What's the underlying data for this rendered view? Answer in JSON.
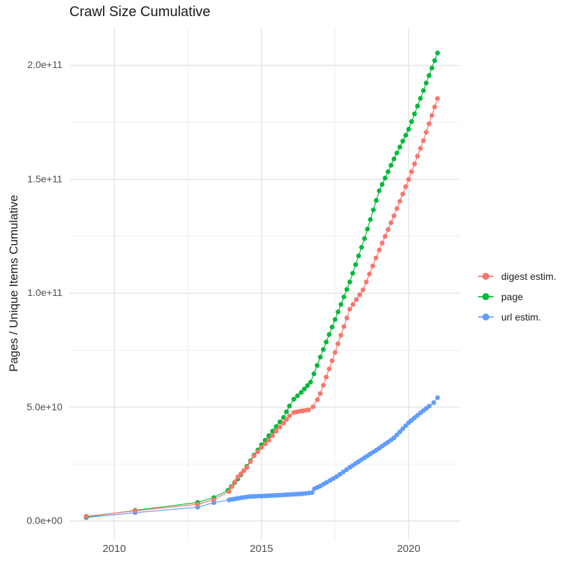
{
  "title": "Crawl Size Cumulative",
  "y_axis": {
    "title": "Pages / Unique Items Cumulative",
    "ticks": [
      {
        "label": "2.0e+11",
        "value_e9": 200
      },
      {
        "label": "1.5e+11",
        "value_e9": 150
      },
      {
        "label": "1.0e+11",
        "value_e9": 100
      },
      {
        "label": "5.0e+10",
        "value_e9": 50
      },
      {
        "label": "0.0e+00",
        "value_e9": 0
      }
    ],
    "minor_values_e9": [
      25,
      75,
      125,
      175
    ]
  },
  "x_axis": {
    "ticks": [
      {
        "label": "2010",
        "value": 2010
      },
      {
        "label": "2015",
        "value": 2015
      },
      {
        "label": "2020",
        "value": 2020
      }
    ],
    "minor_values": [
      2012.5,
      2017.5
    ]
  },
  "legend": {
    "items": [
      {
        "label": "digest estim.",
        "color": "#F8766D"
      },
      {
        "label": "page",
        "color": "#00BA38"
      },
      {
        "label": "url estim.",
        "color": "#619CFF"
      }
    ]
  },
  "colors": {
    "grid_major": "#E3E3E3",
    "grid_minor": "#EDEDED",
    "tick_text": "#4d4d4d",
    "title_text": "#1b1b1b"
  },
  "chart_data": {
    "type": "scatter",
    "title": "Crawl Size Cumulative",
    "xlabel": "",
    "ylabel": "Pages / Unique Items Cumulative",
    "unit": "items (value_billions = 1e9 items)",
    "xlim": [
      2008.5,
      2021.8
    ],
    "ylim_billions": [
      -8,
      218
    ],
    "grid": true,
    "legend_position": "right",
    "dot_interval_years": 0.105,
    "dense_from_year": 2013.8,
    "series": [
      {
        "name": "digest estim.",
        "color": "#F8766D",
        "z": 3,
        "points_billions": [
          [
            2009.05,
            2.1
          ],
          [
            2010.71,
            4.5
          ],
          [
            2012.83,
            7.4
          ],
          [
            2013.38,
            9.4
          ],
          [
            2013.9,
            13
          ],
          [
            2014.2,
            19.4
          ],
          [
            2014.5,
            23.5
          ],
          [
            2014.75,
            28.6
          ],
          [
            2015.0,
            32.3
          ],
          [
            2015.25,
            35.5
          ],
          [
            2015.5,
            39.5
          ],
          [
            2015.75,
            43
          ],
          [
            2015.95,
            46.2
          ],
          [
            2016.1,
            47.7
          ],
          [
            2016.3,
            48.2
          ],
          [
            2016.6,
            48.8
          ],
          [
            2016.75,
            50.2
          ],
          [
            2016.9,
            53.3
          ],
          [
            2017.0,
            56
          ],
          [
            2017.5,
            74
          ],
          [
            2018.0,
            93
          ],
          [
            2018.45,
            101.5
          ],
          [
            2019.0,
            119
          ],
          [
            2019.5,
            134
          ],
          [
            2020.0,
            150
          ],
          [
            2020.5,
            167
          ],
          [
            2020.98,
            185.5
          ]
        ]
      },
      {
        "name": "page",
        "color": "#00BA38",
        "z": 2,
        "points_billions": [
          [
            2009.05,
            1.8
          ],
          [
            2010.71,
            4.7
          ],
          [
            2012.83,
            8.2
          ],
          [
            2013.38,
            10.3
          ],
          [
            2013.86,
            13.5
          ],
          [
            2014.2,
            18.5
          ],
          [
            2014.5,
            24
          ],
          [
            2014.75,
            29
          ],
          [
            2015.0,
            33.5
          ],
          [
            2015.25,
            37.5
          ],
          [
            2015.5,
            41.5
          ],
          [
            2015.75,
            45.5
          ],
          [
            2015.95,
            50.5
          ],
          [
            2016.1,
            53.5
          ],
          [
            2016.35,
            56.5
          ],
          [
            2016.67,
            61
          ],
          [
            2017.0,
            72
          ],
          [
            2017.5,
            88.5
          ],
          [
            2018.0,
            105
          ],
          [
            2018.5,
            124
          ],
          [
            2019.0,
            145
          ],
          [
            2019.5,
            159
          ],
          [
            2020.0,
            172
          ],
          [
            2020.5,
            189
          ],
          [
            2020.98,
            205.5
          ]
        ]
      },
      {
        "name": "url estim.",
        "color": "#619CFF",
        "z": 1,
        "points_billions": [
          [
            2009.05,
            1.5
          ],
          [
            2010.71,
            3.7
          ],
          [
            2012.83,
            6.1
          ],
          [
            2013.38,
            8.1
          ],
          [
            2013.9,
            9.3
          ],
          [
            2014.2,
            10.0
          ],
          [
            2014.6,
            10.8
          ],
          [
            2015.0,
            11.0
          ],
          [
            2015.5,
            11.3
          ],
          [
            2016.0,
            11.7
          ],
          [
            2016.4,
            12.0
          ],
          [
            2016.72,
            12.5
          ],
          [
            2016.8,
            14.2
          ],
          [
            2017.0,
            15.4
          ],
          [
            2017.55,
            19.5
          ],
          [
            2018.0,
            23.6
          ],
          [
            2018.5,
            27.8
          ],
          [
            2019.0,
            32.0
          ],
          [
            2019.5,
            36.5
          ],
          [
            2020.0,
            43.2
          ],
          [
            2020.4,
            47.5
          ],
          [
            2020.7,
            50.5
          ],
          [
            2020.85,
            52.0
          ],
          [
            2020.98,
            54.2
          ]
        ]
      }
    ]
  }
}
